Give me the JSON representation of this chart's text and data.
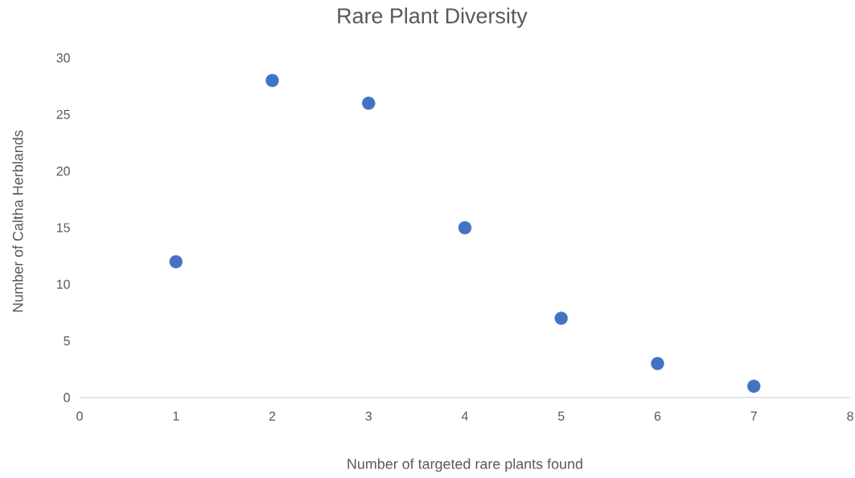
{
  "chart_data": {
    "type": "scatter",
    "title": "Rare Plant Diversity",
    "xlabel": "Number of targeted rare plants found",
    "ylabel": "Number of Caltha Herblands",
    "x": [
      1,
      2,
      3,
      4,
      5,
      6,
      7
    ],
    "values": [
      12,
      28,
      26,
      15,
      7,
      3,
      1
    ],
    "color": "#4472c4",
    "xlim": [
      0,
      8
    ],
    "ylim": [
      0,
      30
    ],
    "xticks": [
      0,
      1,
      2,
      3,
      4,
      5,
      6,
      7,
      8
    ],
    "yticks": [
      0,
      5,
      10,
      15,
      20,
      25,
      30
    ]
  }
}
